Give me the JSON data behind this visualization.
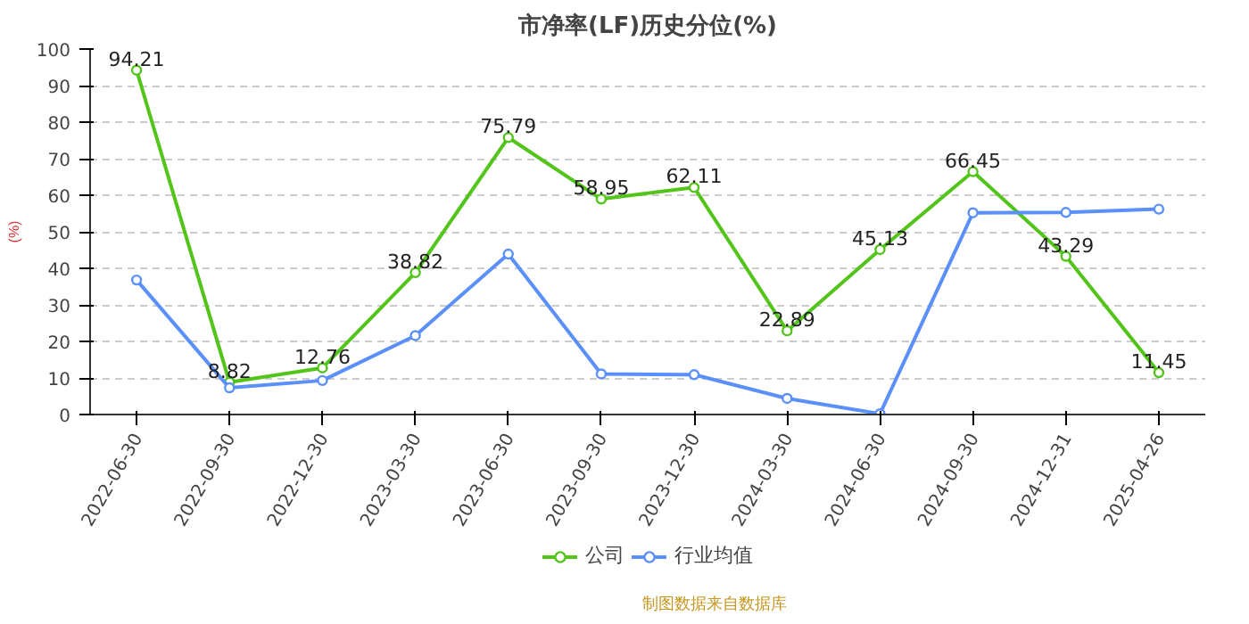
{
  "chart_data": {
    "type": "line",
    "title": "市净率(LF)历史分位(%)",
    "ylabel": "(%)",
    "categories": [
      "2022-06-30",
      "2022-09-30",
      "2022-12-30",
      "2023-03-30",
      "2023-06-30",
      "2023-09-30",
      "2023-12-30",
      "2024-03-30",
      "2024-06-30",
      "2024-09-30",
      "2024-12-31",
      "2025-04-26"
    ],
    "series": [
      {
        "name": "公司",
        "color": "#52c41a",
        "values": [
          94.21,
          8.82,
          12.76,
          38.82,
          75.79,
          58.95,
          62.11,
          22.89,
          45.13,
          66.45,
          43.29,
          11.45
        ],
        "value_labels": [
          "94.21",
          "8.82",
          "12.76",
          "38.82",
          "75.79",
          "58.95",
          "62.11",
          "22.89",
          "45.13",
          "66.45",
          "43.29",
          "11.45"
        ]
      },
      {
        "name": "行业均值",
        "color": "#5b8ff9",
        "values": [
          36.8,
          7.3,
          9.3,
          21.6,
          43.9,
          11.1,
          10.9,
          4.4,
          0.2,
          55.2,
          55.3,
          56.2
        ]
      }
    ],
    "ylim": [
      0,
      100
    ],
    "yticks": [
      0,
      10,
      20,
      30,
      40,
      50,
      60,
      70,
      80,
      90,
      100
    ],
    "grid": "y",
    "legend": "bottom",
    "marker": "circle",
    "line_style": "solid",
    "annotations": [
      "制图数据来自数据库"
    ]
  }
}
